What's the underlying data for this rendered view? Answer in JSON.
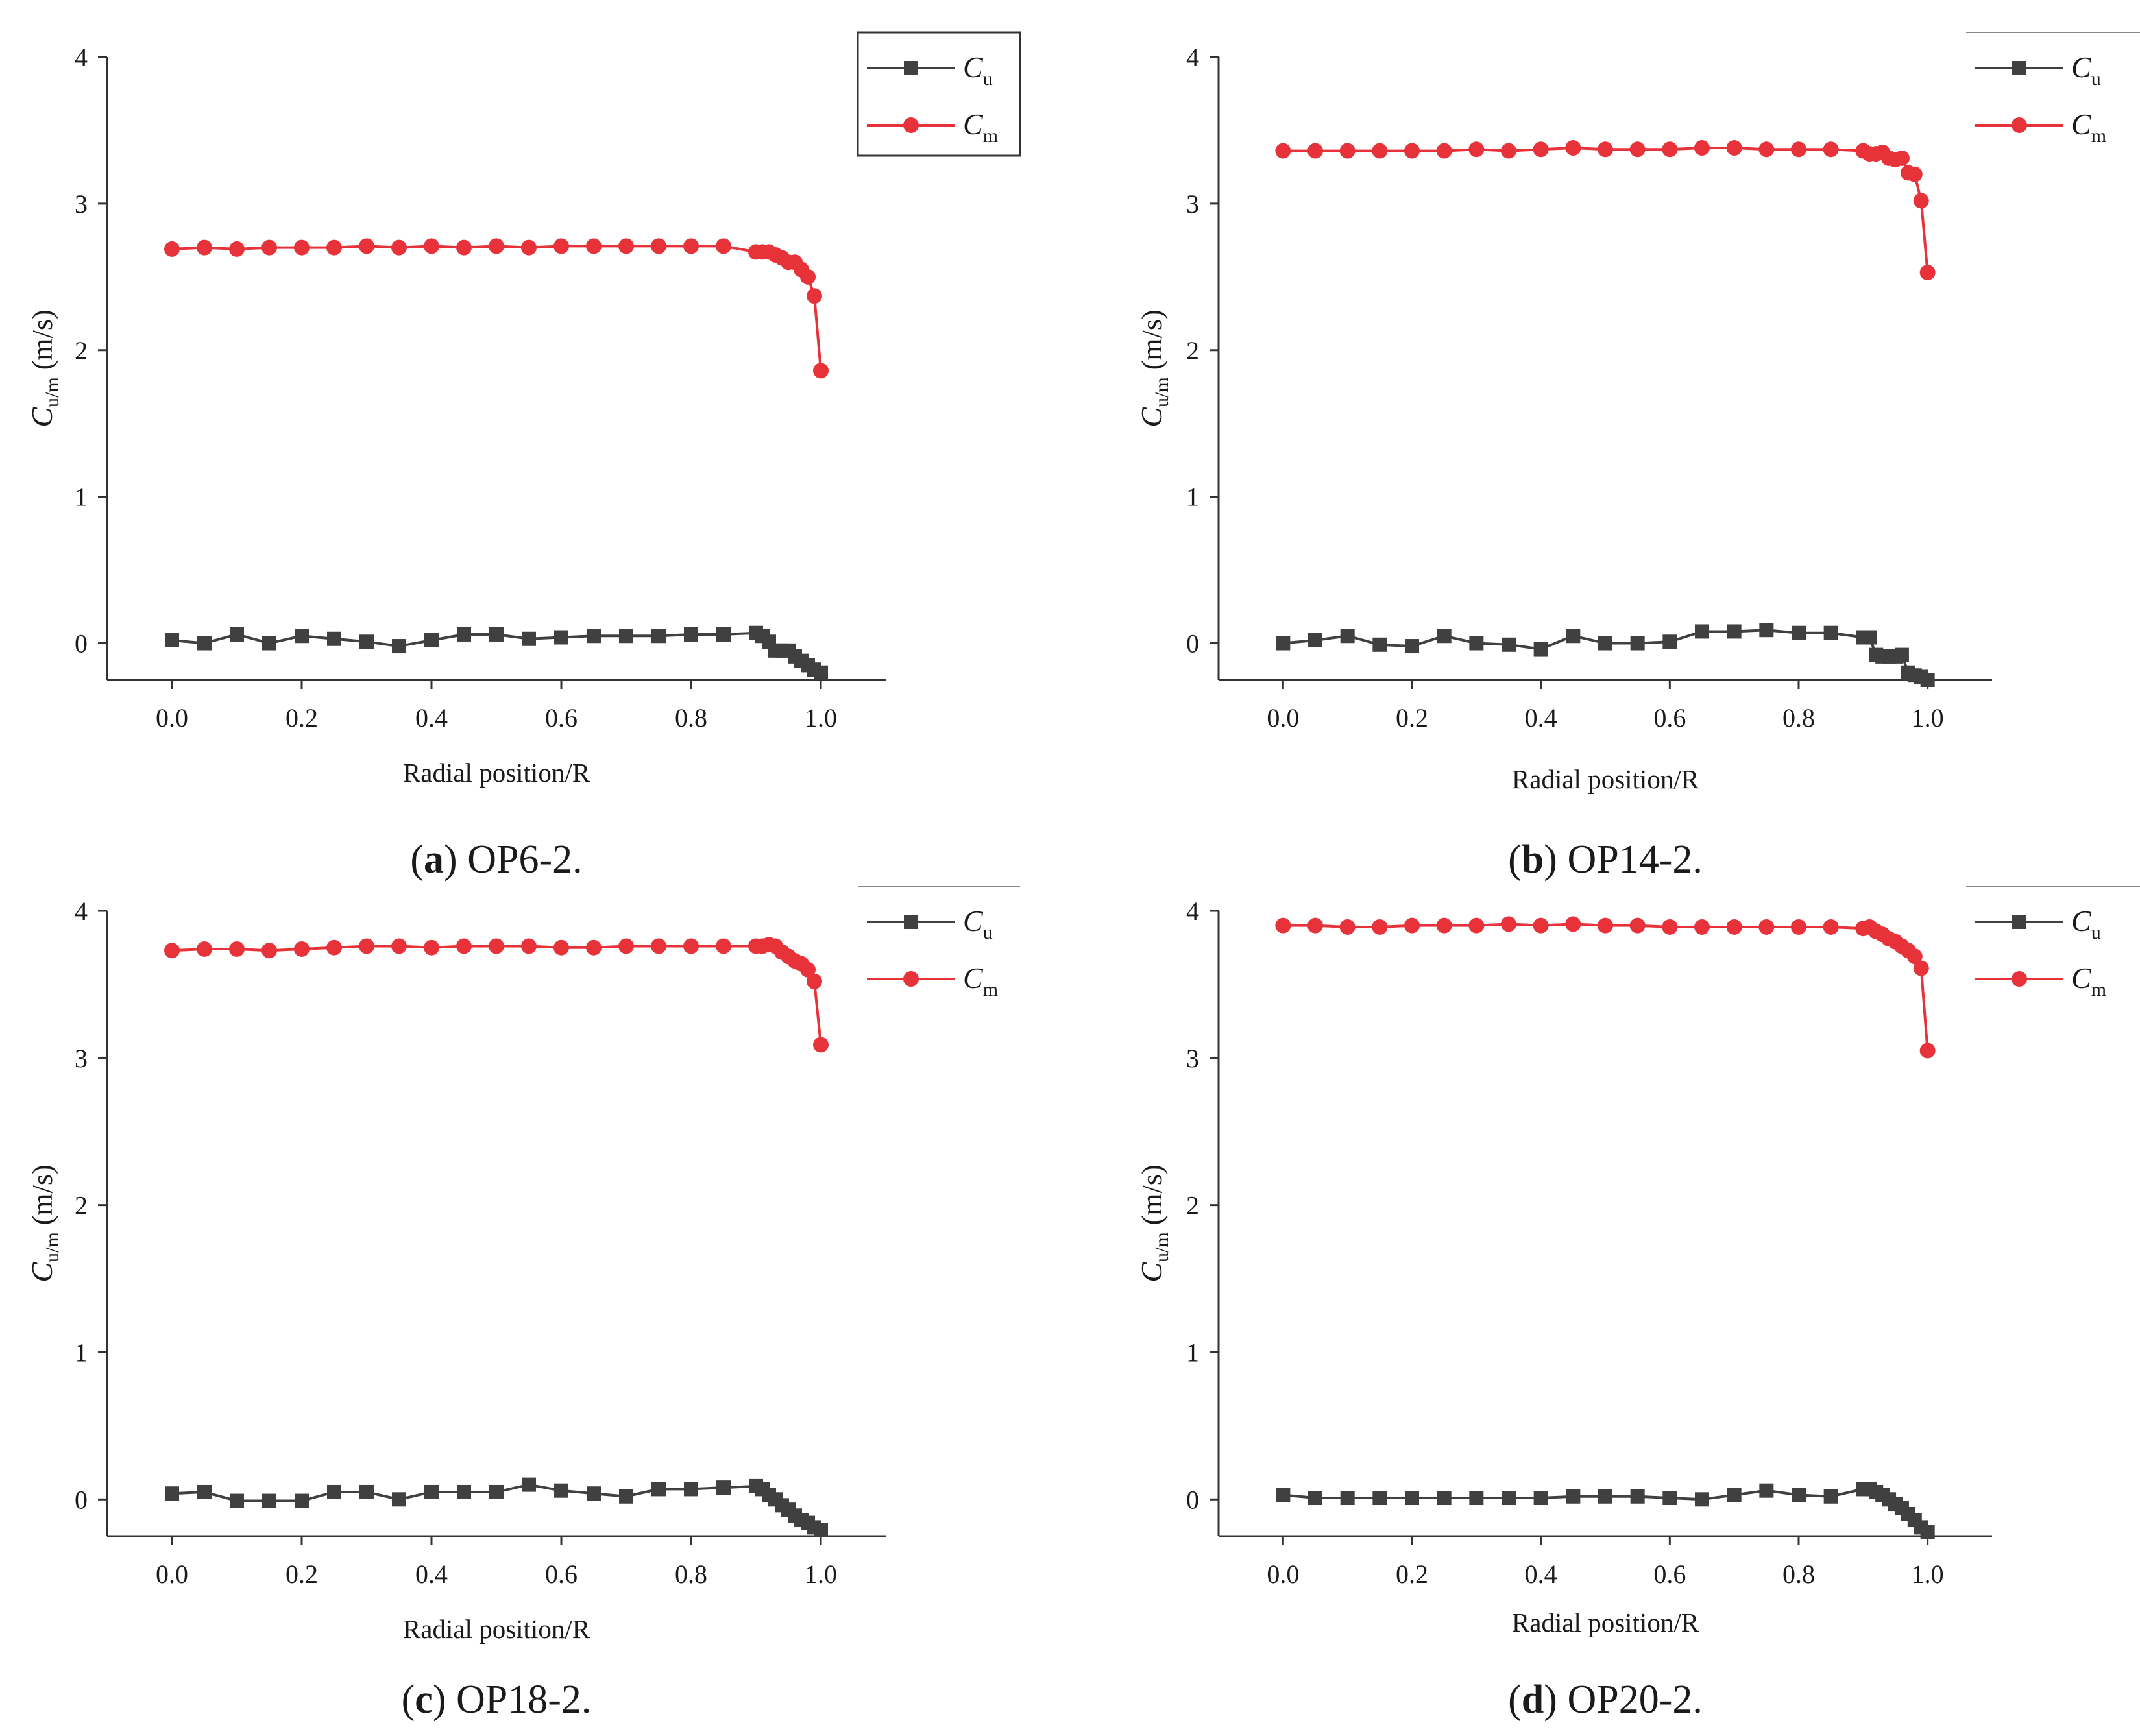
{
  "figure": {
    "y_label": {
      "main": "C",
      "subscript": "u/m",
      "unit": " (m/s)"
    },
    "x_label": "Radial position/R"
  },
  "chart_data": [
    {
      "type": "line",
      "caption_letter": "a",
      "caption_text": "OP6-2.",
      "xlabel": "Radial position/R",
      "ylabel": "Cu/m (m/s)",
      "xlim": [
        -0.1,
        1.1
      ],
      "ylim": [
        -0.25,
        4
      ],
      "xticks": [
        0.0,
        0.2,
        0.4,
        0.6,
        0.8,
        1.0
      ],
      "xtick_labels": [
        "0.0",
        "0.2",
        "0.4",
        "0.6",
        "0.8",
        "1.0"
      ],
      "yticks": [
        0,
        1,
        2,
        3,
        4
      ],
      "ytick_labels": [
        "0",
        "1",
        "2",
        "3",
        "4"
      ],
      "grid": false,
      "legend_position": "top-right",
      "series": [
        {
          "name": "Cu",
          "legend_main": "C",
          "legend_sub": "u",
          "color": "#404040",
          "marker": "square",
          "x": [
            0.0,
            0.05,
            0.1,
            0.15,
            0.2,
            0.25,
            0.3,
            0.35,
            0.4,
            0.45,
            0.5,
            0.55,
            0.6,
            0.65,
            0.7,
            0.75,
            0.8,
            0.85,
            0.9,
            0.91,
            0.92,
            0.93,
            0.94,
            0.95,
            0.96,
            0.97,
            0.98,
            0.99,
            1.0
          ],
          "y": [
            0.02,
            0.0,
            0.06,
            0.0,
            0.05,
            0.03,
            0.01,
            -0.02,
            0.02,
            0.06,
            0.06,
            0.03,
            0.04,
            0.05,
            0.05,
            0.05,
            0.06,
            0.06,
            0.07,
            0.05,
            0.01,
            -0.05,
            -0.05,
            -0.05,
            -0.09,
            -0.12,
            -0.15,
            -0.18,
            -0.2
          ]
        },
        {
          "name": "Cm",
          "legend_main": "C",
          "legend_sub": "m",
          "color": "#e8323a",
          "marker": "circle",
          "x": [
            0.0,
            0.05,
            0.1,
            0.15,
            0.2,
            0.25,
            0.3,
            0.35,
            0.4,
            0.45,
            0.5,
            0.55,
            0.6,
            0.65,
            0.7,
            0.75,
            0.8,
            0.85,
            0.9,
            0.91,
            0.92,
            0.93,
            0.94,
            0.95,
            0.96,
            0.97,
            0.98,
            0.99,
            1.0
          ],
          "y": [
            2.69,
            2.7,
            2.69,
            2.7,
            2.7,
            2.7,
            2.71,
            2.7,
            2.71,
            2.7,
            2.71,
            2.7,
            2.71,
            2.71,
            2.71,
            2.71,
            2.71,
            2.71,
            2.67,
            2.67,
            2.67,
            2.65,
            2.63,
            2.6,
            2.6,
            2.55,
            2.5,
            2.37,
            1.86
          ]
        }
      ]
    },
    {
      "type": "line",
      "caption_letter": "b",
      "caption_text": "OP14-2.",
      "xlabel": "Radial position/R",
      "ylabel": "Cu/m (m/s)",
      "xlim": [
        -0.1,
        1.1
      ],
      "ylim": [
        -0.25,
        4
      ],
      "xticks": [
        0.0,
        0.2,
        0.4,
        0.6,
        0.8,
        1.0
      ],
      "xtick_labels": [
        "0.0",
        "0.2",
        "0.4",
        "0.6",
        "0.8",
        "1.0"
      ],
      "yticks": [
        0,
        1,
        2,
        3,
        4
      ],
      "ytick_labels": [
        "0",
        "1",
        "2",
        "3",
        "4"
      ],
      "grid": false,
      "legend_position": "top-right",
      "series": [
        {
          "name": "Cu",
          "legend_main": "C",
          "legend_sub": "u",
          "color": "#404040",
          "marker": "square",
          "x": [
            0.0,
            0.05,
            0.1,
            0.15,
            0.2,
            0.25,
            0.3,
            0.35,
            0.4,
            0.45,
            0.5,
            0.55,
            0.6,
            0.65,
            0.7,
            0.75,
            0.8,
            0.85,
            0.9,
            0.91,
            0.92,
            0.93,
            0.94,
            0.95,
            0.96,
            0.97,
            0.98,
            0.99,
            1.0
          ],
          "y": [
            0.0,
            0.02,
            0.05,
            -0.01,
            -0.02,
            0.05,
            0.0,
            -0.01,
            -0.04,
            0.05,
            0.0,
            0.0,
            0.01,
            0.08,
            0.08,
            0.09,
            0.07,
            0.07,
            0.04,
            0.04,
            -0.08,
            -0.09,
            -0.09,
            -0.09,
            -0.08,
            -0.2,
            -0.22,
            -0.23,
            -0.25
          ]
        },
        {
          "name": "Cm",
          "legend_main": "C",
          "legend_sub": "m",
          "color": "#e8323a",
          "marker": "circle",
          "x": [
            0.0,
            0.05,
            0.1,
            0.15,
            0.2,
            0.25,
            0.3,
            0.35,
            0.4,
            0.45,
            0.5,
            0.55,
            0.6,
            0.65,
            0.7,
            0.75,
            0.8,
            0.85,
            0.9,
            0.91,
            0.92,
            0.93,
            0.94,
            0.95,
            0.96,
            0.97,
            0.98,
            0.99,
            1.0
          ],
          "y": [
            3.36,
            3.36,
            3.36,
            3.36,
            3.36,
            3.36,
            3.37,
            3.36,
            3.37,
            3.38,
            3.37,
            3.37,
            3.37,
            3.38,
            3.38,
            3.37,
            3.37,
            3.37,
            3.36,
            3.34,
            3.34,
            3.35,
            3.31,
            3.3,
            3.31,
            3.21,
            3.2,
            3.02,
            2.53
          ]
        }
      ]
    },
    {
      "type": "line",
      "caption_letter": "c",
      "caption_text": "OP18-2.",
      "xlabel": "Radial position/R",
      "ylabel": "Cu/m (m/s)",
      "xlim": [
        -0.1,
        1.1
      ],
      "ylim": [
        -0.25,
        4
      ],
      "xticks": [
        0.0,
        0.2,
        0.4,
        0.6,
        0.8,
        1.0
      ],
      "xtick_labels": [
        "0.0",
        "0.2",
        "0.4",
        "0.6",
        "0.8",
        "1.0"
      ],
      "yticks": [
        0,
        1,
        2,
        3,
        4
      ],
      "ytick_labels": [
        "0",
        "1",
        "2",
        "3",
        "4"
      ],
      "grid": false,
      "legend_position": "top-right",
      "series": [
        {
          "name": "Cu",
          "legend_main": "C",
          "legend_sub": "u",
          "color": "#404040",
          "marker": "square",
          "x": [
            0.0,
            0.05,
            0.1,
            0.15,
            0.2,
            0.25,
            0.3,
            0.35,
            0.4,
            0.45,
            0.5,
            0.55,
            0.6,
            0.65,
            0.7,
            0.75,
            0.8,
            0.85,
            0.9,
            0.91,
            0.92,
            0.93,
            0.94,
            0.95,
            0.96,
            0.97,
            0.98,
            0.99,
            1.0
          ],
          "y": [
            0.04,
            0.05,
            -0.01,
            -0.01,
            -0.01,
            0.05,
            0.05,
            0.0,
            0.05,
            0.05,
            0.05,
            0.1,
            0.06,
            0.04,
            0.02,
            0.07,
            0.07,
            0.08,
            0.09,
            0.07,
            0.03,
            0.0,
            -0.04,
            -0.07,
            -0.11,
            -0.14,
            -0.16,
            -0.19,
            -0.21
          ]
        },
        {
          "name": "Cm",
          "legend_main": "C",
          "legend_sub": "m",
          "color": "#e8323a",
          "marker": "circle",
          "x": [
            0.0,
            0.05,
            0.1,
            0.15,
            0.2,
            0.25,
            0.3,
            0.35,
            0.4,
            0.45,
            0.5,
            0.55,
            0.6,
            0.65,
            0.7,
            0.75,
            0.8,
            0.85,
            0.9,
            0.91,
            0.92,
            0.93,
            0.94,
            0.95,
            0.96,
            0.97,
            0.98,
            0.99,
            1.0
          ],
          "y": [
            3.73,
            3.74,
            3.74,
            3.73,
            3.74,
            3.75,
            3.76,
            3.76,
            3.75,
            3.76,
            3.76,
            3.76,
            3.75,
            3.75,
            3.76,
            3.76,
            3.76,
            3.76,
            3.76,
            3.76,
            3.77,
            3.76,
            3.72,
            3.69,
            3.66,
            3.64,
            3.6,
            3.52,
            3.09
          ]
        }
      ]
    },
    {
      "type": "line",
      "caption_letter": "d",
      "caption_text": "OP20-2.",
      "xlabel": "Radial position/R",
      "ylabel": "Cu/m (m/s)",
      "xlim": [
        -0.1,
        1.1
      ],
      "ylim": [
        -0.25,
        4
      ],
      "xticks": [
        0.0,
        0.2,
        0.4,
        0.6,
        0.8,
        1.0
      ],
      "xtick_labels": [
        "0.0",
        "0.2",
        "0.4",
        "0.6",
        "0.8",
        "1.0"
      ],
      "yticks": [
        0,
        1,
        2,
        3,
        4
      ],
      "ytick_labels": [
        "0",
        "1",
        "2",
        "3",
        "4"
      ],
      "grid": false,
      "legend_position": "top-right",
      "series": [
        {
          "name": "Cu",
          "legend_main": "C",
          "legend_sub": "u",
          "color": "#404040",
          "marker": "square",
          "x": [
            0.0,
            0.05,
            0.1,
            0.15,
            0.2,
            0.25,
            0.3,
            0.35,
            0.4,
            0.45,
            0.5,
            0.55,
            0.6,
            0.65,
            0.7,
            0.75,
            0.8,
            0.85,
            0.9,
            0.91,
            0.92,
            0.93,
            0.94,
            0.95,
            0.96,
            0.97,
            0.98,
            0.99,
            1.0
          ],
          "y": [
            0.03,
            0.01,
            0.01,
            0.01,
            0.01,
            0.01,
            0.01,
            0.01,
            0.01,
            0.02,
            0.02,
            0.02,
            0.01,
            0.0,
            0.03,
            0.06,
            0.03,
            0.02,
            0.07,
            0.07,
            0.05,
            0.03,
            0.0,
            -0.03,
            -0.06,
            -0.1,
            -0.14,
            -0.19,
            -0.22
          ]
        },
        {
          "name": "Cm",
          "legend_main": "C",
          "legend_sub": "m",
          "color": "#e8323a",
          "marker": "circle",
          "x": [
            0.0,
            0.05,
            0.1,
            0.15,
            0.2,
            0.25,
            0.3,
            0.35,
            0.4,
            0.45,
            0.5,
            0.55,
            0.6,
            0.65,
            0.7,
            0.75,
            0.8,
            0.85,
            0.9,
            0.91,
            0.92,
            0.93,
            0.94,
            0.95,
            0.96,
            0.97,
            0.98,
            0.99,
            1.0
          ],
          "y": [
            3.9,
            3.9,
            3.89,
            3.89,
            3.9,
            3.9,
            3.9,
            3.91,
            3.9,
            3.91,
            3.9,
            3.9,
            3.89,
            3.89,
            3.89,
            3.89,
            3.89,
            3.89,
            3.88,
            3.89,
            3.86,
            3.84,
            3.81,
            3.79,
            3.76,
            3.73,
            3.69,
            3.61,
            3.05
          ]
        }
      ]
    }
  ]
}
